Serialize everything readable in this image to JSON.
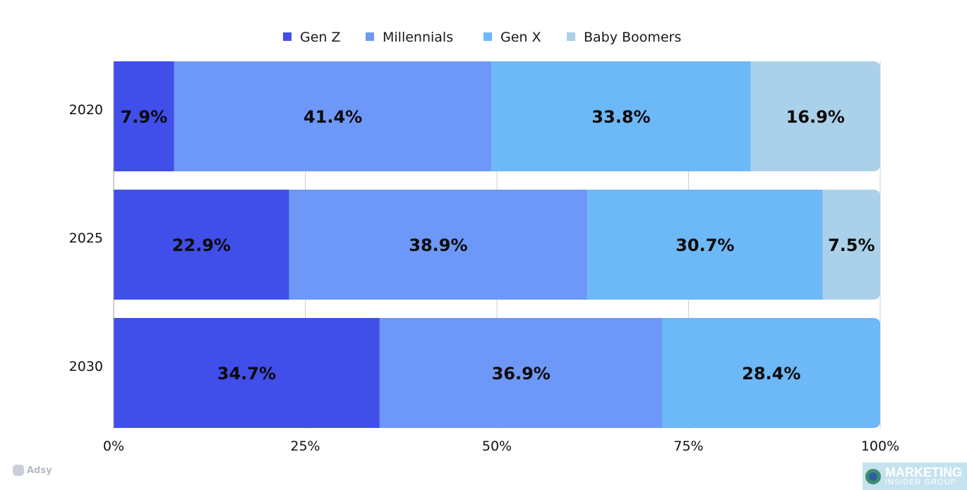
{
  "chart_data": {
    "type": "bar",
    "orientation": "horizontal",
    "stacked": true,
    "categories": [
      "2020",
      "2025",
      "2030"
    ],
    "series": [
      {
        "name": "Gen Z",
        "color": "#404eea",
        "values": [
          7.9,
          22.9,
          34.7
        ],
        "labels": [
          "7.9%",
          "22.9%",
          "34.7%"
        ]
      },
      {
        "name": "Millennials",
        "color": "#6d98f7",
        "values": [
          41.4,
          38.9,
          36.9
        ],
        "labels": [
          "41.4%",
          "38.9%",
          "36.9%"
        ]
      },
      {
        "name": "Gen X",
        "color": "#6db8f7",
        "values": [
          33.8,
          30.7,
          28.4
        ],
        "labels": [
          "33.8%",
          "30.7%",
          "28.4%"
        ]
      },
      {
        "name": "Baby Boomers",
        "color": "#abd0e9",
        "values": [
          16.9,
          7.5,
          0
        ],
        "labels": [
          "16.9%",
          "7.5%",
          ""
        ]
      }
    ],
    "x_ticks": [
      "0%",
      "25%",
      "50%",
      "75%",
      "100%"
    ],
    "x_tick_values": [
      0,
      25,
      50,
      75,
      100
    ],
    "xlim": [
      0,
      100
    ],
    "grid": "vertical",
    "legend": "top-center",
    "title": "",
    "xlabel": "",
    "ylabel": ""
  },
  "watermark": {
    "text": "Adsy"
  },
  "brand": {
    "line1": "MARKETING",
    "line2": "INSIDER GROUP"
  }
}
